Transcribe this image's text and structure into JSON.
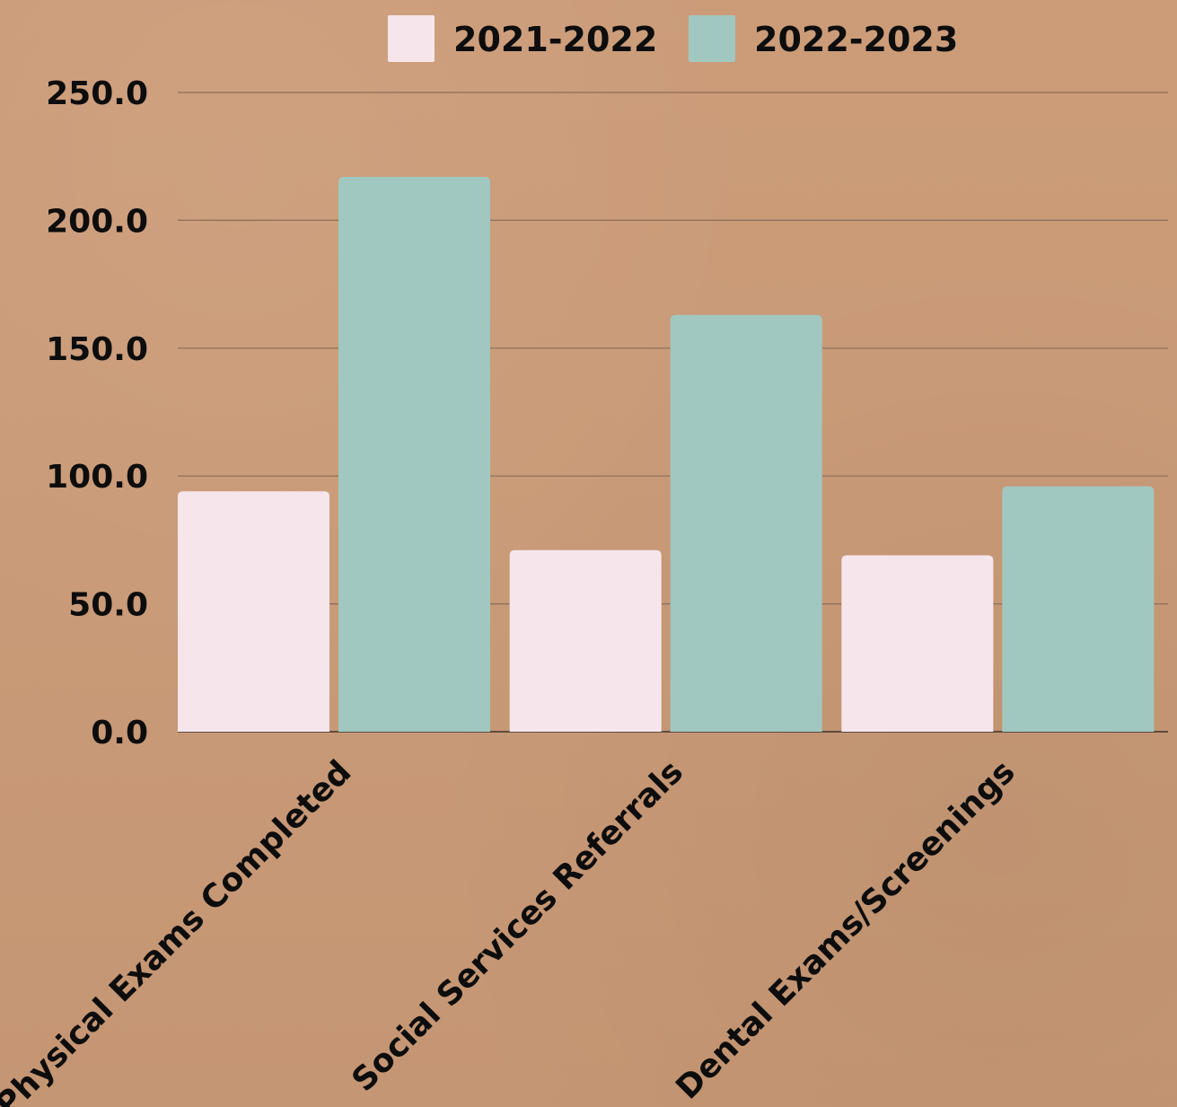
{
  "chart_data": {
    "type": "bar",
    "categories": [
      "Physical Exams Completed",
      "Social Services Referrals",
      "Dental Exams/Screenings"
    ],
    "series": [
      {
        "name": "2021-2022",
        "values": [
          94,
          71,
          69
        ],
        "color": "#f6e6ec"
      },
      {
        "name": "2022-2023",
        "values": [
          217,
          163,
          96
        ],
        "color": "#a1c8c0"
      }
    ],
    "ylim": [
      0,
      250
    ],
    "yticks": [
      "0.0",
      "50.0",
      "100.0",
      "150.0",
      "200.0",
      "250.0"
    ],
    "grid": true,
    "legend_position": "top-center",
    "title": "",
    "xlabel": "",
    "ylabel": ""
  }
}
